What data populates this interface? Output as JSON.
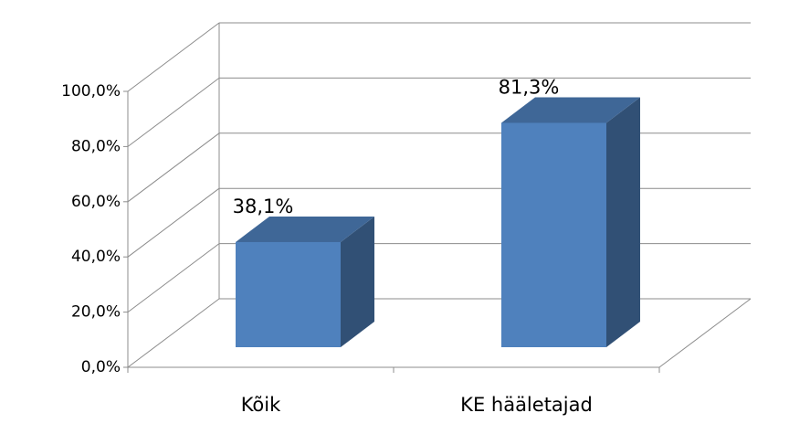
{
  "chart_data": {
    "type": "bar3d",
    "categories": [
      "Kõik",
      "KE hääletajad"
    ],
    "values": [
      38.1,
      81.3
    ],
    "value_labels": [
      "38,1%",
      "81,3%"
    ],
    "color": "#4f81bd",
    "ylim": [
      0,
      100
    ],
    "yticks": [
      {
        "value": 0,
        "label": "0,0%"
      },
      {
        "value": 20,
        "label": "20,0%"
      },
      {
        "value": 40,
        "label": "40,0%"
      },
      {
        "value": 60,
        "label": "60,0%"
      },
      {
        "value": 80,
        "label": "80,0%"
      },
      {
        "value": 100,
        "label": "100,0%"
      }
    ],
    "grid": true
  }
}
